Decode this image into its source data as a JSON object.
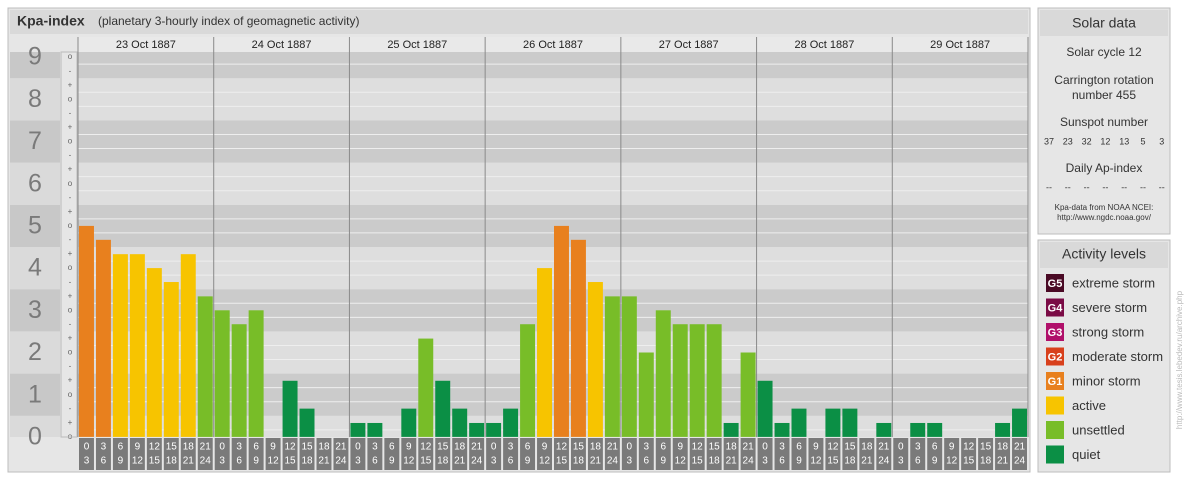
{
  "chart_data": {
    "type": "bar",
    "title": "Kpa-index",
    "subtitle": "(planetary 3-hourly index of geomagnetic activity)",
    "days": [
      "23 Oct 1887",
      "24 Oct 1887",
      "25 Oct 1887",
      "26 Oct 1887",
      "27 Oct 1887",
      "28 Oct 1887",
      "29 Oct 1887"
    ],
    "hour_ranges": [
      [
        "0",
        "3"
      ],
      [
        "3",
        "6"
      ],
      [
        "6",
        "9"
      ],
      [
        "9",
        "12"
      ],
      [
        "12",
        "15"
      ],
      [
        "15",
        "18"
      ],
      [
        "18",
        "21"
      ],
      [
        "21",
        "24"
      ]
    ],
    "values": [
      5,
      4.67,
      4.33,
      4.33,
      4,
      3.67,
      4.33,
      3.33,
      3,
      2.67,
      3,
      0,
      1.33,
      0.67,
      0,
      0,
      0.33,
      0.33,
      0,
      0.67,
      2.33,
      1.33,
      0.67,
      0.33,
      0.33,
      0.67,
      2.67,
      4,
      5,
      4.67,
      3.67,
      3.33,
      3.33,
      2,
      3,
      2.67,
      2.67,
      2.67,
      0.33,
      2,
      1.33,
      0.33,
      0.67,
      0,
      0.67,
      0.67,
      0,
      0.33,
      0,
      0.33,
      0.33,
      0,
      0,
      0,
      0.33,
      0.67
    ],
    "colors": [
      "#e8801e",
      "#e8801e",
      "#f7c400",
      "#f7c400",
      "#f7c400",
      "#f7c400",
      "#f7c400",
      "#78bd28",
      "#78bd28",
      "#78bd28",
      "#78bd28",
      "#0b8f45",
      "#0b8f45",
      "#0b8f45",
      "#0b8f45",
      "#0b8f45",
      "#0b8f45",
      "#0b8f45",
      "#0b8f45",
      "#0b8f45",
      "#78bd28",
      "#0b8f45",
      "#0b8f45",
      "#0b8f45",
      "#0b8f45",
      "#0b8f45",
      "#78bd28",
      "#f7c400",
      "#e8801e",
      "#e8801e",
      "#f7c400",
      "#78bd28",
      "#78bd28",
      "#78bd28",
      "#78bd28",
      "#78bd28",
      "#78bd28",
      "#78bd28",
      "#0b8f45",
      "#78bd28",
      "#0b8f45",
      "#0b8f45",
      "#0b8f45",
      "#0b8f45",
      "#0b8f45",
      "#0b8f45",
      "#0b8f45",
      "#0b8f45",
      "#0b8f45",
      "#0b8f45",
      "#0b8f45",
      "#0b8f45",
      "#0b8f45",
      "#0b8f45",
      "#0b8f45",
      "#0b8f45"
    ],
    "ylim": [
      -0.5,
      9.5
    ],
    "yticks": [
      0,
      1,
      2,
      3,
      4,
      5,
      6,
      7,
      8,
      9
    ],
    "sub_tick_labels": [
      "-",
      "o",
      "+"
    ]
  },
  "solar_data": {
    "title": "Solar data",
    "solar_cycle": "Solar cycle 12",
    "carrington": [
      "Carrington rotation",
      "number 455"
    ],
    "sunspot_title": "Sunspot number",
    "sunspot_numbers": [
      37,
      23,
      32,
      12,
      13,
      5,
      3
    ],
    "ap_title": "Daily Ap-index",
    "ap_values": [
      "--",
      "--",
      "--",
      "--",
      "--",
      "--",
      "--"
    ],
    "source": [
      "Kpa-data from NOAA NCEI:",
      "http://www.ngdc.noaa.gov/"
    ]
  },
  "activity_levels": {
    "title": "Activity levels",
    "items": [
      {
        "code": "G5",
        "label": "extreme storm",
        "color": "#4a0a25"
      },
      {
        "code": "G4",
        "label": "severe storm",
        "color": "#7a0b45"
      },
      {
        "code": "G3",
        "label": "strong storm",
        "color": "#b0106a"
      },
      {
        "code": "G2",
        "label": "moderate storm",
        "color": "#d8401c"
      },
      {
        "code": "G1",
        "label": "minor storm",
        "color": "#e8801e"
      },
      {
        "label": "active",
        "color": "#f7c400"
      },
      {
        "label": "unsettled",
        "color": "#78bd28"
      },
      {
        "label": "quiet",
        "color": "#0b8f45"
      }
    ]
  },
  "side_url": "http://www.tesis.lebedev.ru/archive.php"
}
